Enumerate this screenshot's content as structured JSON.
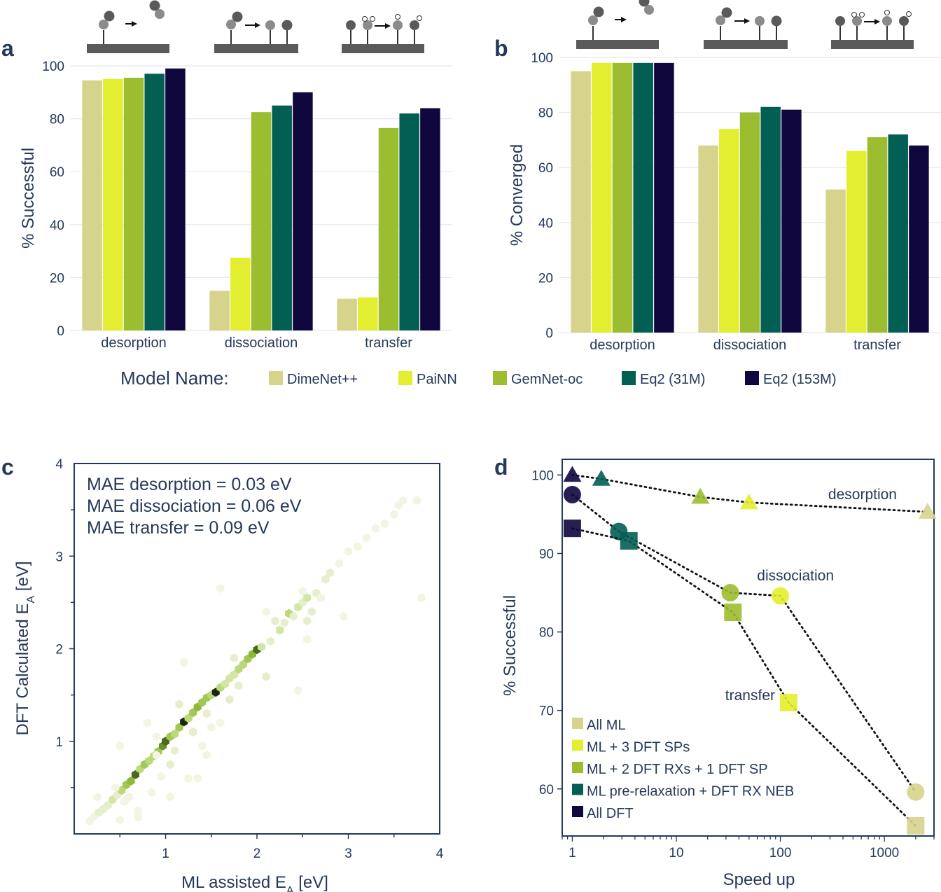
{
  "colors": {
    "DimeNet++": "#d6d48c",
    "PaiNN": "#e2ee2f",
    "GemNet-oc": "#9cbd2f",
    "Eq2 (31M)": "#035e54",
    "Eq2 (153M)": "#10073f",
    "text": "#26395a",
    "grid": "#e3e7ef"
  },
  "legend": {
    "title": "Model Name:",
    "items": [
      "DimeNet++",
      "PaiNN",
      "GemNet-oc",
      "Eq2 (31M)",
      "Eq2 (153M)"
    ]
  },
  "chart_data": [
    {
      "panel": "a",
      "type": "bar",
      "ylabel": "% Successful",
      "xlabel": "",
      "ylim": [
        0,
        100
      ],
      "yticks": [
        0,
        20,
        40,
        60,
        80,
        100
      ],
      "grid": true,
      "categories": [
        "desorption",
        "dissociation",
        "transfer"
      ],
      "series": [
        {
          "name": "DimeNet++",
          "values": [
            94.5,
            15,
            12
          ]
        },
        {
          "name": "PaiNN",
          "values": [
            95,
            27.5,
            12.5
          ]
        },
        {
          "name": "GemNet-oc",
          "values": [
            95.5,
            82.5,
            76.5
          ]
        },
        {
          "name": "Eq2 (31M)",
          "values": [
            97,
            85,
            82
          ]
        },
        {
          "name": "Eq2 (153M)",
          "values": [
            99,
            90,
            84
          ]
        }
      ]
    },
    {
      "panel": "b",
      "type": "bar",
      "ylabel": "% Converged",
      "xlabel": "",
      "ylim": [
        0,
        100
      ],
      "yticks": [
        0,
        20,
        40,
        60,
        80,
        100
      ],
      "grid": true,
      "categories": [
        "desorption",
        "dissociation",
        "transfer"
      ],
      "series": [
        {
          "name": "DimeNet++",
          "values": [
            95,
            68,
            52
          ]
        },
        {
          "name": "PaiNN",
          "values": [
            98,
            74,
            66
          ]
        },
        {
          "name": "GemNet-oc",
          "values": [
            98,
            80,
            71
          ]
        },
        {
          "name": "Eq2 (31M)",
          "values": [
            98,
            82,
            72
          ]
        },
        {
          "name": "Eq2 (153M)",
          "values": [
            98,
            81,
            68
          ]
        }
      ]
    },
    {
      "panel": "c",
      "type": "scatter",
      "subtype": "hexbin",
      "xlabel": "ML assisted E",
      "xlabel_sub": "A",
      "xlabel_unit": " [eV]",
      "ylabel": "DFT Calculated E",
      "ylabel_sub": "A",
      "ylabel_unit": " [eV]",
      "xlim": [
        0,
        4
      ],
      "ylim": [
        0,
        4
      ],
      "xticks": [
        1,
        2,
        3,
        4
      ],
      "yticks": [
        1,
        2,
        3,
        4
      ],
      "annotations": [
        "MAE desorption = 0.03 eV",
        "MAE dissociation = 0.06 eV",
        "MAE transfer = 0.09 eV"
      ],
      "points": [
        [
          0.17,
          0.14,
          1
        ],
        [
          0.22,
          0.19,
          1
        ],
        [
          0.27,
          0.23,
          2
        ],
        [
          0.32,
          0.27,
          2
        ],
        [
          0.37,
          0.31,
          2
        ],
        [
          0.42,
          0.37,
          3
        ],
        [
          0.47,
          0.42,
          2
        ],
        [
          0.52,
          0.47,
          4
        ],
        [
          0.57,
          0.53,
          5
        ],
        [
          0.62,
          0.57,
          6
        ],
        [
          0.67,
          0.64,
          8
        ],
        [
          0.72,
          0.7,
          4
        ],
        [
          0.77,
          0.75,
          5
        ],
        [
          0.82,
          0.79,
          4
        ],
        [
          0.87,
          0.84,
          4
        ],
        [
          0.92,
          0.89,
          5
        ],
        [
          0.97,
          0.95,
          7
        ],
        [
          1.0,
          1.0,
          8
        ],
        [
          1.05,
          1.05,
          5
        ],
        [
          1.1,
          1.08,
          4
        ],
        [
          1.15,
          1.15,
          5
        ],
        [
          1.2,
          1.21,
          9
        ],
        [
          1.25,
          1.25,
          4
        ],
        [
          1.3,
          1.31,
          5
        ],
        [
          1.35,
          1.37,
          6
        ],
        [
          1.4,
          1.42,
          5
        ],
        [
          1.45,
          1.47,
          5
        ],
        [
          1.5,
          1.5,
          4
        ],
        [
          1.55,
          1.53,
          9
        ],
        [
          1.6,
          1.58,
          4
        ],
        [
          1.65,
          1.62,
          3
        ],
        [
          1.7,
          1.68,
          3
        ],
        [
          1.75,
          1.72,
          3
        ],
        [
          1.8,
          1.78,
          4
        ],
        [
          1.85,
          1.83,
          4
        ],
        [
          1.9,
          1.89,
          5
        ],
        [
          1.95,
          1.94,
          6
        ],
        [
          2.0,
          1.99,
          8
        ],
        [
          2.05,
          2.02,
          3
        ],
        [
          2.15,
          2.08,
          2
        ],
        [
          2.25,
          2.2,
          3
        ],
        [
          2.3,
          2.28,
          2
        ],
        [
          2.35,
          2.38,
          4
        ],
        [
          2.4,
          2.35,
          2
        ],
        [
          2.45,
          2.45,
          3
        ],
        [
          2.5,
          2.5,
          2
        ],
        [
          2.55,
          2.55,
          3
        ],
        [
          2.65,
          2.6,
          2
        ],
        [
          2.75,
          2.75,
          2
        ],
        [
          2.8,
          2.82,
          2
        ],
        [
          2.9,
          2.92,
          1
        ],
        [
          3.0,
          3.05,
          1
        ],
        [
          3.1,
          3.1,
          1
        ],
        [
          3.2,
          3.2,
          1
        ],
        [
          3.3,
          3.3,
          1
        ],
        [
          3.4,
          3.35,
          1
        ],
        [
          3.5,
          3.45,
          1
        ],
        [
          3.55,
          3.55,
          1
        ],
        [
          3.6,
          3.6,
          1
        ],
        [
          3.75,
          3.6,
          1
        ],
        [
          3.8,
          2.55,
          1
        ],
        [
          2.95,
          2.35,
          1
        ],
        [
          2.7,
          2.55,
          1
        ],
        [
          1.5,
          1.15,
          1
        ],
        [
          1.35,
          0.6,
          1
        ],
        [
          1.25,
          0.6,
          1
        ],
        [
          0.8,
          1.2,
          1
        ],
        [
          0.9,
          0.85,
          1
        ],
        [
          1.1,
          0.9,
          2
        ],
        [
          1.3,
          1.1,
          2
        ],
        [
          1.45,
          1.3,
          2
        ],
        [
          1.6,
          1.2,
          1
        ],
        [
          0.6,
          0.4,
          1
        ],
        [
          0.55,
          0.35,
          1
        ],
        [
          0.45,
          0.5,
          1
        ],
        [
          0.25,
          0.4,
          1
        ],
        [
          0.5,
          0.15,
          1
        ],
        [
          0.7,
          0.18,
          1
        ],
        [
          0.7,
          0.25,
          1
        ],
        [
          0.85,
          0.45,
          1
        ],
        [
          1.05,
          0.4,
          1
        ],
        [
          0.5,
          0.95,
          1
        ],
        [
          1.15,
          1.4,
          2
        ],
        [
          1.7,
          1.45,
          2
        ],
        [
          1.75,
          1.9,
          2
        ],
        [
          1.8,
          1.6,
          2
        ],
        [
          2.1,
          1.7,
          2
        ],
        [
          2.1,
          2.4,
          1
        ],
        [
          2.2,
          2.3,
          2
        ],
        [
          2.55,
          2.1,
          1
        ],
        [
          2.45,
          1.55,
          1
        ],
        [
          1.6,
          2.65,
          1
        ],
        [
          1.2,
          1.85,
          1
        ],
        [
          1.05,
          0.75,
          2
        ],
        [
          0.95,
          0.62,
          1
        ],
        [
          1.4,
          0.95,
          1
        ],
        [
          1.45,
          0.85,
          1
        ],
        [
          0.9,
          1.05,
          1
        ],
        [
          2.5,
          2.62,
          1
        ],
        [
          2.6,
          2.4,
          2
        ],
        [
          2.55,
          2.3,
          2
        ]
      ]
    },
    {
      "panel": "d",
      "type": "scatter",
      "xlabel": "Speed up",
      "ylabel": "% Successful",
      "xscale": "log",
      "xlim": [
        0.8,
        3000
      ],
      "ylim": [
        54,
        102
      ],
      "xticks": [
        1,
        10,
        100,
        1000
      ],
      "yticks": [
        60,
        70,
        80,
        90,
        100
      ],
      "series": [
        {
          "name": "desorption",
          "marker": "triangle",
          "points": [
            [
              1,
              100,
              "All DFT"
            ],
            [
              1.9,
              99.5,
              "ML pre-relaxation + DFT RX NEB"
            ],
            [
              17,
              97.2,
              "ML + 2 DFT RXs + 1 DFT SP"
            ],
            [
              50,
              96.5,
              "ML + 3 DFT SPs"
            ],
            [
              2600,
              95.3,
              "All ML"
            ]
          ]
        },
        {
          "name": "dissociation",
          "marker": "circle",
          "points": [
            [
              1,
              97.5,
              "All DFT"
            ],
            [
              2.8,
              92.8,
              "ML pre-relaxation + DFT RX NEB"
            ],
            [
              33,
              85,
              "ML + 2 DFT RXs + 1 DFT SP"
            ],
            [
              100,
              84.6,
              "ML + 3 DFT SPs"
            ],
            [
              2000,
              59.6,
              "All ML"
            ]
          ]
        },
        {
          "name": "transfer",
          "marker": "square",
          "points": [
            [
              1,
              93.2,
              "All DFT"
            ],
            [
              3.5,
              91.6,
              "ML pre-relaxation + DFT RX NEB"
            ],
            [
              35,
              82.5,
              "ML + 2 DFT RXs + 1 DFT SP"
            ],
            [
              120,
              71,
              "ML + 3 DFT SPs"
            ],
            [
              2000,
              55.3,
              "All ML"
            ]
          ]
        }
      ],
      "legend": [
        {
          "label": "All ML",
          "color": "#d6d48c"
        },
        {
          "label": "ML + 3 DFT SPs",
          "color": "#e2ee2f"
        },
        {
          "label": "ML + 2 DFT RXs + 1 DFT SP",
          "color": "#9cbd2f"
        },
        {
          "label": "ML pre-relaxation + DFT RX NEB",
          "color": "#035e54"
        },
        {
          "label": "All DFT",
          "color": "#10073f"
        }
      ]
    }
  ]
}
